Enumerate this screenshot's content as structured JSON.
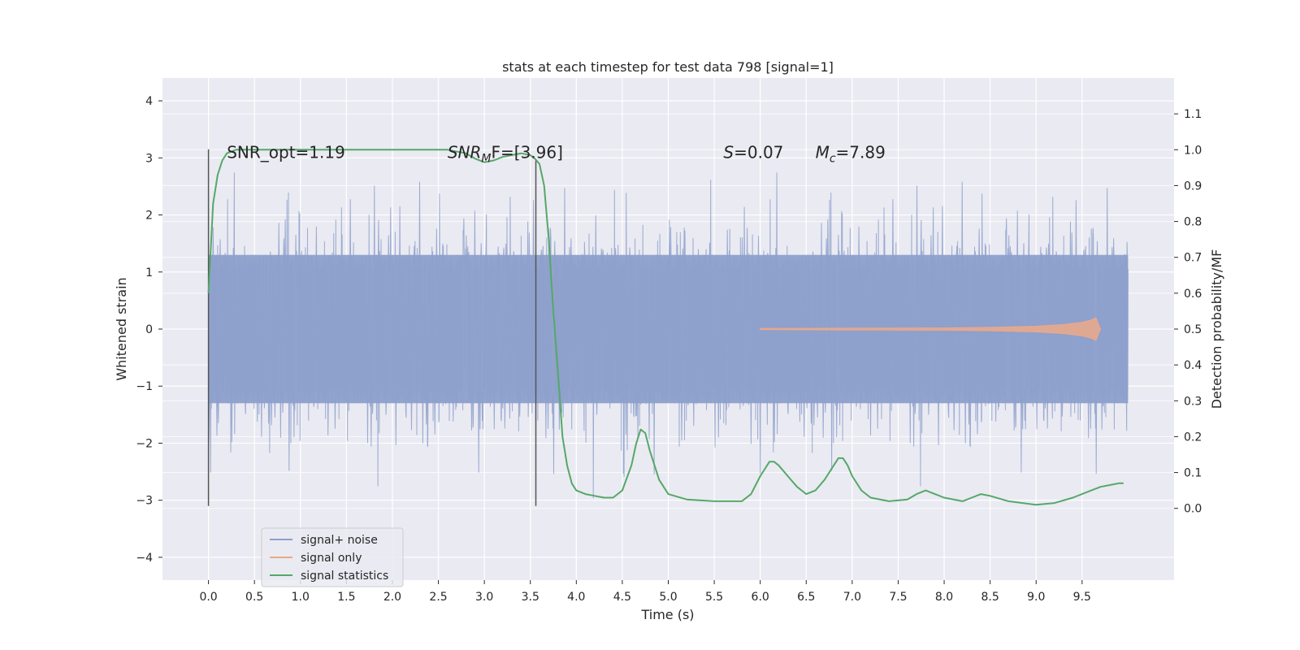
{
  "chart_data": {
    "type": "line",
    "title": "stats at each timestep for test data 798 [signal=1]",
    "xlabel": "Time (s)",
    "ylabel": "Whitened strain",
    "ylabel_right": "Detection probability/MF",
    "xlim": [
      -0.5,
      10.5
    ],
    "ylim": [
      -4.4,
      4.4
    ],
    "ylim_right": [
      -0.2,
      1.2
    ],
    "x_ticks": [
      "0.0",
      "0.5",
      "1.0",
      "1.5",
      "2.0",
      "2.5",
      "3.0",
      "3.5",
      "4.0",
      "4.5",
      "5.0",
      "5.5",
      "6.0",
      "6.5",
      "7.0",
      "7.5",
      "8.0",
      "8.5",
      "9.0",
      "9.5"
    ],
    "y_ticks": [
      "4",
      "3",
      "2",
      "1",
      "0",
      "−1",
      "−2",
      "−3",
      "−4"
    ],
    "y_tick_values": [
      4,
      3,
      2,
      1,
      0,
      -1,
      -2,
      -3,
      -4
    ],
    "y_right_ticks": [
      "1.1",
      "1.0",
      "0.9",
      "0.8",
      "0.7",
      "0.6",
      "0.5",
      "0.4",
      "0.3",
      "0.2",
      "0.1",
      "0.0"
    ],
    "y_right_tick_values": [
      1.1,
      1.0,
      0.9,
      0.8,
      0.7,
      0.6,
      0.5,
      0.4,
      0.3,
      0.2,
      0.1,
      0.0
    ],
    "grid": true,
    "legend_placement": "lower-left",
    "series": [
      {
        "name": "signal+ noise",
        "color": "#8da0cb",
        "axis": "left",
        "x_range": [
          0.0,
          10.0
        ],
        "envelope_upper": 1.3,
        "envelope_lower": -1.3
      },
      {
        "name": "signal only",
        "color": "#e8a98c",
        "axis": "left",
        "x": [
          6.0,
          7.0,
          8.0,
          8.5,
          9.0,
          9.3,
          9.5,
          9.6,
          9.65,
          9.7
        ],
        "amplitude": [
          0.01,
          0.015,
          0.02,
          0.03,
          0.05,
          0.08,
          0.12,
          0.16,
          0.2,
          0.0
        ]
      },
      {
        "name": "signal statistics",
        "color": "#55a868",
        "axis": "right",
        "x": [
          0.0,
          0.05,
          0.1,
          0.15,
          0.2,
          0.3,
          0.5,
          1.0,
          1.5,
          2.0,
          2.5,
          2.6,
          2.8,
          2.9,
          3.0,
          3.1,
          3.2,
          3.3,
          3.4,
          3.5,
          3.55,
          3.6,
          3.65,
          3.7,
          3.75,
          3.8,
          3.85,
          3.9,
          3.95,
          4.0,
          4.1,
          4.2,
          4.3,
          4.4,
          4.5,
          4.6,
          4.65,
          4.7,
          4.75,
          4.8,
          4.9,
          5.0,
          5.2,
          5.5,
          5.8,
          5.9,
          6.0,
          6.1,
          6.15,
          6.2,
          6.3,
          6.4,
          6.5,
          6.6,
          6.7,
          6.8,
          6.85,
          6.9,
          6.95,
          7.0,
          7.1,
          7.2,
          7.4,
          7.6,
          7.7,
          7.8,
          7.9,
          8.0,
          8.2,
          8.3,
          8.4,
          8.5,
          8.7,
          9.0,
          9.2,
          9.4,
          9.6,
          9.7,
          9.8,
          9.9,
          9.95
        ],
        "y": [
          0.6,
          0.85,
          0.93,
          0.97,
          0.99,
          1.0,
          1.0,
          1.0,
          1.0,
          1.0,
          1.0,
          1.0,
          0.99,
          0.975,
          0.965,
          0.97,
          0.98,
          0.985,
          0.99,
          0.985,
          0.975,
          0.96,
          0.9,
          0.75,
          0.55,
          0.38,
          0.2,
          0.12,
          0.07,
          0.05,
          0.04,
          0.035,
          0.03,
          0.03,
          0.05,
          0.12,
          0.18,
          0.22,
          0.21,
          0.16,
          0.08,
          0.04,
          0.025,
          0.02,
          0.02,
          0.04,
          0.09,
          0.13,
          0.13,
          0.12,
          0.09,
          0.06,
          0.04,
          0.05,
          0.08,
          0.12,
          0.14,
          0.14,
          0.12,
          0.09,
          0.05,
          0.03,
          0.02,
          0.025,
          0.04,
          0.05,
          0.04,
          0.03,
          0.02,
          0.03,
          0.04,
          0.035,
          0.02,
          0.01,
          0.015,
          0.03,
          0.05,
          0.06,
          0.065,
          0.07,
          0.07
        ]
      }
    ],
    "vertical_lines": [
      {
        "x": 0.0,
        "y_from": -3.1,
        "y_to": 3.15,
        "axis": "left",
        "color": "#555555"
      },
      {
        "x": 3.56,
        "y_from": -3.1,
        "y_to": 0.97,
        "axis": "right_top",
        "color": "#555555"
      }
    ],
    "annotations": [
      {
        "id": "snr_opt",
        "text": "SNR_opt=1.19",
        "x": 0.2,
        "y": 3.1
      },
      {
        "id": "snr_mf",
        "base": "SNR",
        "sub": "M",
        "tail": "F=[3.96]",
        "x": 2.6,
        "y": 3.1
      },
      {
        "id": "s",
        "italic": "S",
        "tail": "=0.07",
        "x": 5.6,
        "y": 3.1
      },
      {
        "id": "mc",
        "italic": "M",
        "sub": "c",
        "tail": "=7.89",
        "x": 6.6,
        "y": 3.1
      }
    ]
  }
}
